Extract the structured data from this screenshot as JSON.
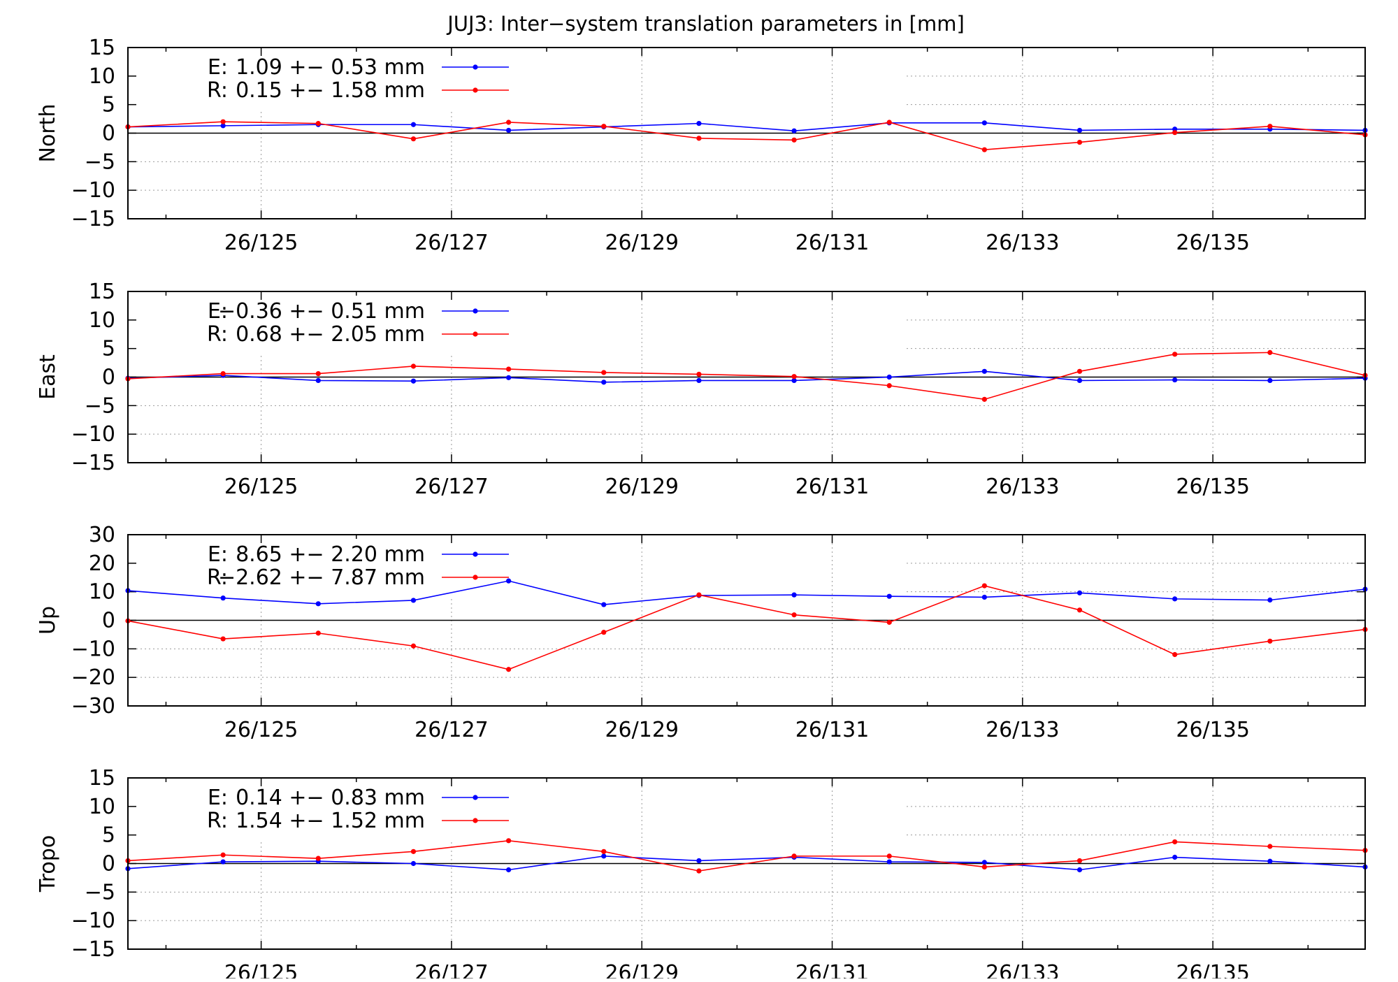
{
  "title": "JUJ3: Inter−system translation parameters in [mm]",
  "chart_data": [
    {
      "type": "line",
      "ylabel": "North",
      "ylim": [
        -15,
        15
      ],
      "yticks": [
        "15",
        "10",
        "5",
        "0",
        "−5",
        "−10",
        "−15"
      ],
      "xlim": [
        123.6,
        136.6
      ],
      "xticks": [
        125,
        127,
        129,
        131,
        133,
        135
      ],
      "xtick_labels": [
        "26/125",
        "26/127",
        "26/129",
        "26/131",
        "26/133",
        "26/135"
      ],
      "x": [
        123.6,
        124.6,
        125.6,
        126.6,
        127.6,
        128.6,
        129.6,
        130.6,
        131.6,
        132.6,
        133.6,
        134.6,
        135.6,
        136.6
      ],
      "series": [
        {
          "name": "E:",
          "legend_value": "1.09 +− 0.53 mm",
          "color": "#0000ff",
          "values": [
            1.1,
            1.3,
            1.5,
            1.5,
            0.5,
            1.1,
            1.7,
            0.4,
            1.8,
            1.8,
            0.5,
            0.7,
            0.7,
            0.5
          ]
        },
        {
          "name": "R:",
          "legend_value": "0.15 +− 1.58 mm",
          "color": "#ff0000",
          "values": [
            1.1,
            2.0,
            1.7,
            -1.0,
            1.9,
            1.2,
            -0.9,
            -1.2,
            1.9,
            -2.9,
            -1.6,
            0.1,
            1.2,
            -0.3
          ]
        }
      ]
    },
    {
      "type": "line",
      "ylabel": "East",
      "ylim": [
        -15,
        15
      ],
      "yticks": [
        "15",
        "10",
        "5",
        "0",
        "−5",
        "−10",
        "−15"
      ],
      "xlim": [
        123.6,
        136.6
      ],
      "xticks": [
        125,
        127,
        129,
        131,
        133,
        135
      ],
      "xtick_labels": [
        "26/125",
        "26/127",
        "26/129",
        "26/131",
        "26/133",
        "26/135"
      ],
      "x": [
        123.6,
        124.6,
        125.6,
        126.6,
        127.6,
        128.6,
        129.6,
        130.6,
        131.6,
        132.6,
        133.6,
        134.6,
        135.6,
        136.6
      ],
      "series": [
        {
          "name": "E:",
          "legend_value": "−0.36 +− 0.51 mm",
          "color": "#0000ff",
          "values": [
            -0.2,
            0.3,
            -0.6,
            -0.7,
            -0.1,
            -0.9,
            -0.6,
            -0.6,
            0.0,
            1.0,
            -0.6,
            -0.5,
            -0.6,
            -0.2
          ]
        },
        {
          "name": "R:",
          "legend_value": "0.68 +− 2.05 mm",
          "color": "#ff0000",
          "values": [
            -0.3,
            0.6,
            0.6,
            1.9,
            1.4,
            0.8,
            0.5,
            0.1,
            -1.5,
            -3.9,
            1.0,
            4.0,
            4.3,
            0.3
          ]
        }
      ]
    },
    {
      "type": "line",
      "ylabel": "Up",
      "ylim": [
        -30,
        30
      ],
      "yticks": [
        "30",
        "20",
        "10",
        "0",
        "−10",
        "−20",
        "−30"
      ],
      "xlim": [
        123.6,
        136.6
      ],
      "xticks": [
        125,
        127,
        129,
        131,
        133,
        135
      ],
      "xtick_labels": [
        "26/125",
        "26/127",
        "26/129",
        "26/131",
        "26/133",
        "26/135"
      ],
      "x": [
        123.6,
        124.6,
        125.6,
        126.6,
        127.6,
        128.6,
        129.6,
        130.6,
        131.6,
        132.6,
        133.6,
        134.6,
        135.6,
        136.6
      ],
      "series": [
        {
          "name": "E:",
          "legend_value": "8.65 +− 2.20 mm",
          "color": "#0000ff",
          "values": [
            10.4,
            7.8,
            5.8,
            7.0,
            13.8,
            5.5,
            8.7,
            8.9,
            8.4,
            8.1,
            9.6,
            7.5,
            7.1,
            10.9
          ]
        },
        {
          "name": "R:",
          "legend_value": "−2.62 +− 7.87 mm",
          "color": "#ff0000",
          "values": [
            -0.2,
            -6.5,
            -4.5,
            -9.0,
            -17.2,
            -4.2,
            8.9,
            1.9,
            -0.7,
            12.1,
            3.6,
            -12.0,
            -7.3,
            -3.2
          ]
        }
      ]
    },
    {
      "type": "line",
      "ylabel": "Tropo",
      "ylim": [
        -15,
        15
      ],
      "yticks": [
        "15",
        "10",
        "5",
        "0",
        "−5",
        "−10",
        "−15"
      ],
      "xlim": [
        123.6,
        136.6
      ],
      "xticks": [
        125,
        127,
        129,
        131,
        133,
        135
      ],
      "xtick_labels": [
        "26/125",
        "26/127",
        "26/129",
        "26/131",
        "26/133",
        "26/135"
      ],
      "x": [
        123.6,
        124.6,
        125.6,
        126.6,
        127.6,
        128.6,
        129.6,
        130.6,
        131.6,
        132.6,
        133.6,
        134.6,
        135.6,
        136.6
      ],
      "series": [
        {
          "name": "E:",
          "legend_value": "0.14 +− 0.83 mm",
          "color": "#0000ff",
          "values": [
            -0.9,
            0.3,
            0.4,
            0.0,
            -1.1,
            1.3,
            0.5,
            1.1,
            0.3,
            0.2,
            -1.1,
            1.1,
            0.4,
            -0.6
          ]
        },
        {
          "name": "R:",
          "legend_value": "1.54 +− 1.52 mm",
          "color": "#ff0000",
          "values": [
            0.5,
            1.5,
            0.9,
            2.1,
            4.0,
            2.1,
            -1.3,
            1.3,
            1.3,
            -0.6,
            0.5,
            3.8,
            3.0,
            2.3
          ]
        }
      ]
    }
  ]
}
